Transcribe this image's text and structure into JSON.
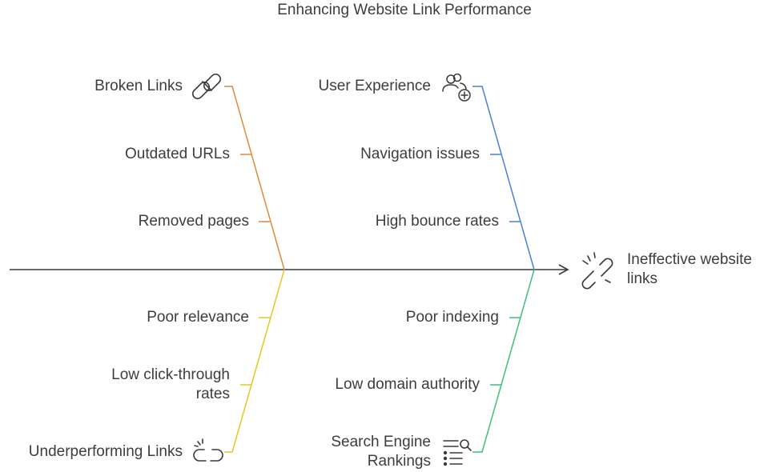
{
  "title": "Enhancing Website Link Performance",
  "effect": {
    "label": "Ineffective website\nlinks",
    "icon": "broken-link-icon"
  },
  "categories": [
    {
      "id": "broken",
      "label": "Broken Links",
      "icon": "broken-chain-icon",
      "color": "#e0893a",
      "causes": [
        "Outdated URLs",
        "Removed pages"
      ]
    },
    {
      "id": "ux",
      "label": "User Experience",
      "icon": "users-plus-icon",
      "color": "#4a7fdc",
      "causes": [
        "Navigation issues",
        "High bounce rates"
      ]
    },
    {
      "id": "underperforming",
      "label": "Underperforming Links",
      "icon": "unlinked-icon",
      "color": "#e3c824",
      "causes": [
        "Poor relevance",
        "Low click-through rates"
      ]
    },
    {
      "id": "seo",
      "label": "Search Engine Rankings",
      "icon": "search-list-icon",
      "color": "#3dbf7a",
      "causes": [
        "Poor indexing",
        "Low domain authority"
      ]
    }
  ]
}
